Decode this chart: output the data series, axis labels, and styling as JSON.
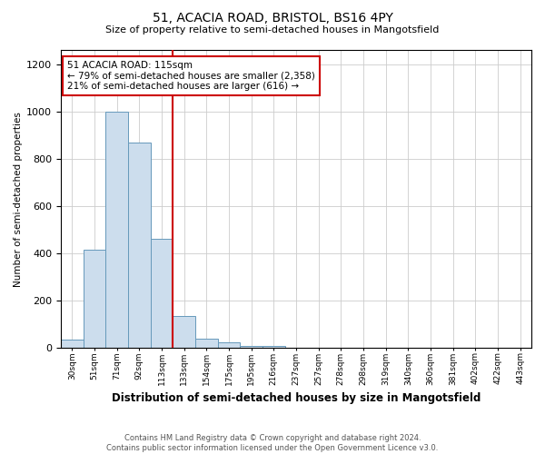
{
  "title1": "51, ACACIA ROAD, BRISTOL, BS16 4PY",
  "title2": "Size of property relative to semi-detached houses in Mangotsfield",
  "xlabel": "Distribution of semi-detached houses by size in Mangotsfield",
  "ylabel": "Number of semi-detached properties",
  "footnote1": "Contains HM Land Registry data © Crown copyright and database right 2024.",
  "footnote2": "Contains public sector information licensed under the Open Government Licence v3.0.",
  "bin_labels": [
    "30sqm",
    "51sqm",
    "71sqm",
    "92sqm",
    "113sqm",
    "133sqm",
    "154sqm",
    "175sqm",
    "195sqm",
    "216sqm",
    "237sqm",
    "257sqm",
    "278sqm",
    "298sqm",
    "319sqm",
    "340sqm",
    "360sqm",
    "381sqm",
    "402sqm",
    "422sqm",
    "443sqm"
  ],
  "bar_heights": [
    35,
    415,
    1000,
    870,
    460,
    135,
    40,
    22,
    10,
    8,
    0,
    0,
    0,
    0,
    0,
    0,
    0,
    0,
    0,
    0,
    0
  ],
  "bar_color": "#ccdded",
  "bar_edge_color": "#6699bb",
  "property_bin_index": 4,
  "property_label": "51 ACACIA ROAD: 115sqm",
  "smaller_pct": 79,
  "smaller_n": "2,358",
  "larger_pct": 21,
  "larger_n": "616",
  "vline_color": "#cc0000",
  "annotation_box_edge": "#cc0000",
  "ylim": [
    0,
    1260
  ],
  "yticks": [
    0,
    200,
    400,
    600,
    800,
    1000,
    1200
  ]
}
